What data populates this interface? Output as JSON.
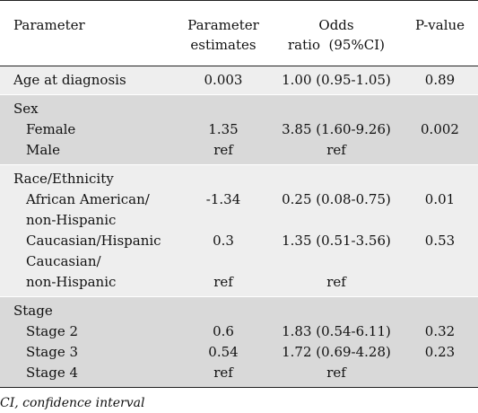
{
  "headers": {
    "parameter": "Parameter",
    "estimates": [
      "Parameter",
      "estimates"
    ],
    "odds": [
      "Odds",
      "ratio  (95%CI)"
    ],
    "pvalue": "P-value"
  },
  "rows": {
    "age": {
      "label": "Age at diagnosis",
      "estimate": "0.003",
      "odds": "1.00 (0.95-1.05)",
      "p": "0.89"
    },
    "sex": {
      "label": "Sex",
      "female": {
        "label": "Female",
        "estimate": "1.35",
        "odds": "3.85 (1.60-9.26)",
        "p": "0.002"
      },
      "male": {
        "label": "Male",
        "estimate": "ref",
        "odds": "ref",
        "p": ""
      }
    },
    "race": {
      "label": "Race/Ethnicity",
      "african": {
        "label": [
          "African American/",
          "non-Hispanic"
        ],
        "estimate": "-1.34",
        "odds": "0.25 (0.08-0.75)",
        "p": "0.01"
      },
      "cauc_hisp": {
        "label": "Caucasian/Hispanic",
        "estimate": "0.3",
        "odds": "1.35 (0.51-3.56)",
        "p": "0.53"
      },
      "cauc_non": {
        "label": [
          "Caucasian/",
          "non-Hispanic"
        ],
        "estimate": "ref",
        "odds": "ref",
        "p": ""
      }
    },
    "stage": {
      "label": "Stage",
      "s2": {
        "label": "Stage 2",
        "estimate": "0.6",
        "odds": "1.83 (0.54-6.11)",
        "p": "0.32"
      },
      "s3": {
        "label": "Stage 3",
        "estimate": "0.54",
        "odds": "1.72 (0.69-4.28)",
        "p": "0.23"
      },
      "s4": {
        "label": "Stage 4",
        "estimate": "ref",
        "odds": "ref",
        "p": ""
      }
    }
  },
  "footnote": "CI, confidence interval"
}
